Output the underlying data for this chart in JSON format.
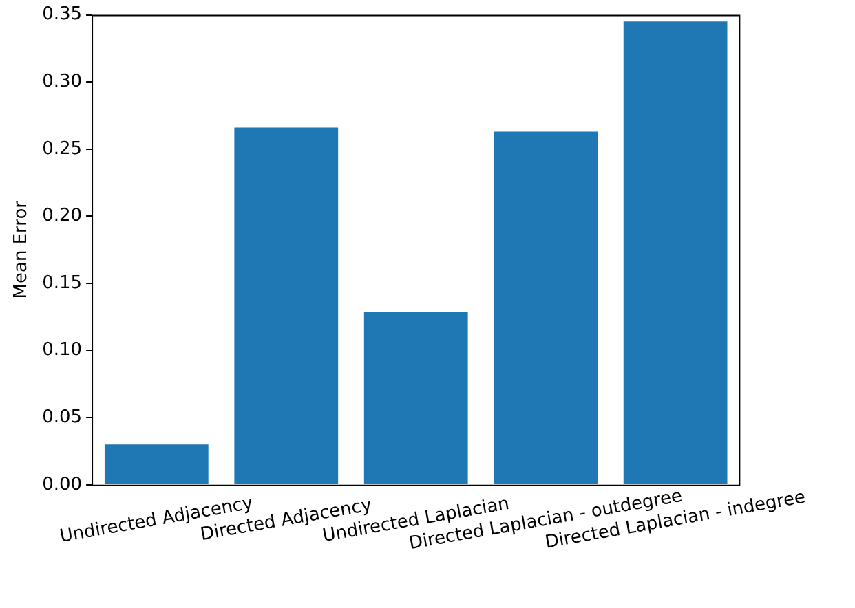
{
  "chart_data": {
    "type": "bar",
    "ylabel": "Mean Error",
    "categories": [
      "Undirected Adjacency",
      "Directed Adjacency",
      "Undirected Laplacian",
      "Directed Laplacian - outdegree",
      "Directed Laplacian - indegree"
    ],
    "values": [
      0.03,
      0.266,
      0.129,
      0.263,
      0.345
    ],
    "color": "#1f77b4",
    "ylim": [
      0,
      0.35
    ],
    "yticks": [
      {
        "value": 0,
        "label": "0.00"
      },
      {
        "value": 0.05,
        "label": "0.05"
      },
      {
        "value": 0.1,
        "label": "0.10"
      },
      {
        "value": 0.15,
        "label": "0.15"
      },
      {
        "value": 0.2,
        "label": "0.20"
      },
      {
        "value": 0.25,
        "label": "0.25"
      },
      {
        "value": 0.3,
        "label": "0.30"
      },
      {
        "value": 0.35,
        "label": "0.35"
      }
    ],
    "grid": false,
    "legend": false
  }
}
